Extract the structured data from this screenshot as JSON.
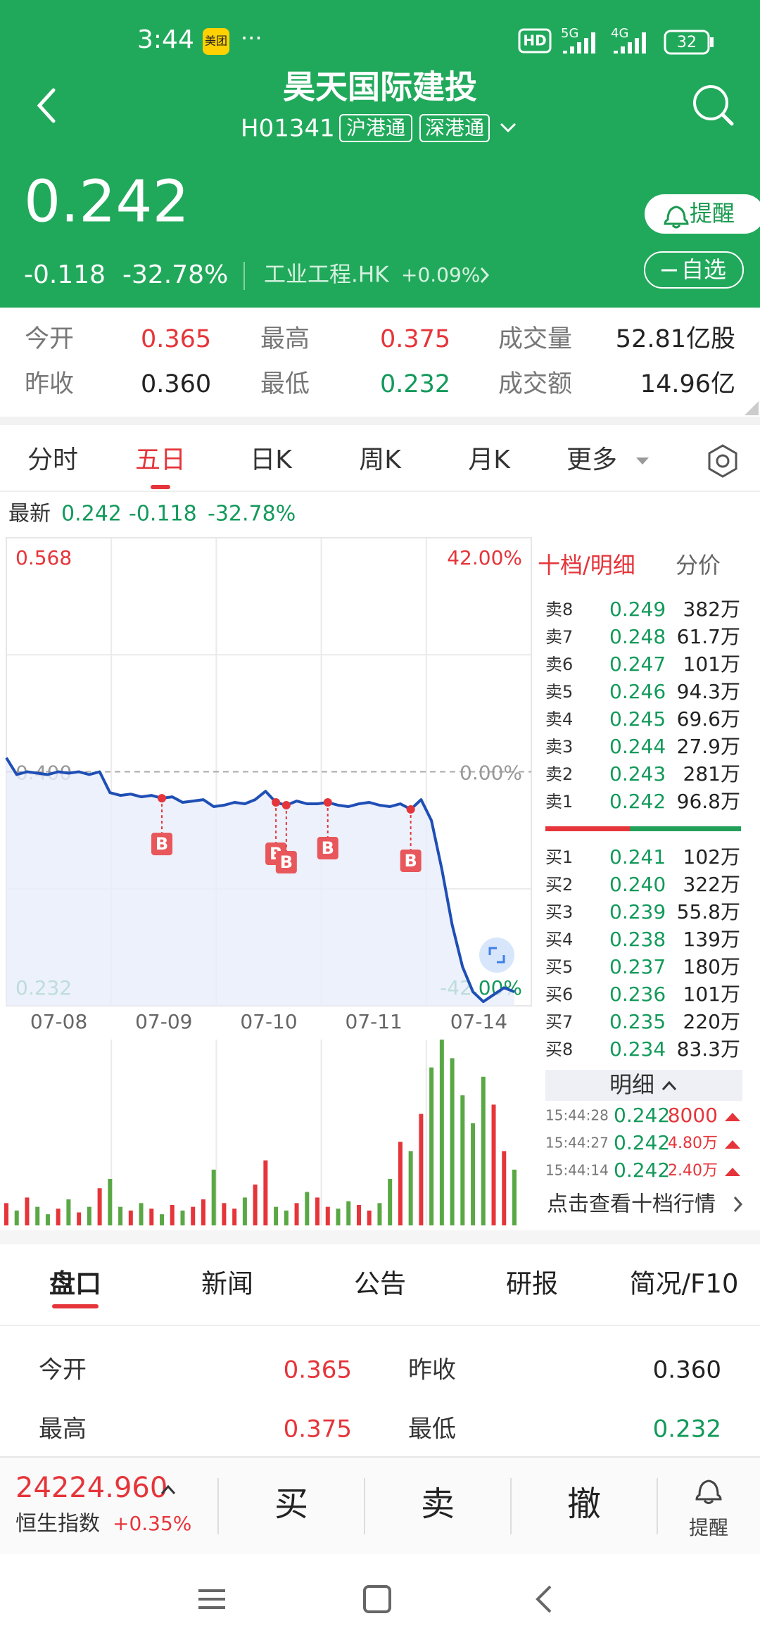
{
  "status": {
    "time": "3:44",
    "app_badge": "美团",
    "more": "···",
    "hd": "HD",
    "net1": "5G",
    "net2": "4G",
    "battery": "32"
  },
  "header": {
    "title": "昊天国际建投",
    "code": "H01341",
    "tags": [
      "沪港通",
      "深港通"
    ],
    "price": "0.242",
    "change": "-0.118",
    "change_pct": "-32.78%",
    "sector": "工业工程.HK",
    "sector_change": "+0.09%",
    "alert_button": "提醒",
    "watch_button": "自选"
  },
  "stats": [
    {
      "label": "今开",
      "value": "0.365",
      "tone": "up"
    },
    {
      "label": "最高",
      "value": "0.375",
      "tone": "up"
    },
    {
      "label": "成交量",
      "value": "52.81亿股",
      "tone": "flat"
    },
    {
      "label": "昨收",
      "value": "0.360",
      "tone": "flat"
    },
    {
      "label": "最低",
      "value": "0.232",
      "tone": "down"
    },
    {
      "label": "成交额",
      "value": "14.96亿",
      "tone": "flat"
    }
  ],
  "tabs": {
    "items": [
      "分时",
      "五日",
      "日K",
      "周K",
      "月K",
      "更多"
    ],
    "active": 1
  },
  "latest": {
    "label": "最新",
    "price": "0.242",
    "change": "-0.118",
    "pct": "-32.78%"
  },
  "price_chart": {
    "type": "line",
    "color": "#1f4fb5",
    "categories": [
      "07-08",
      "07-09",
      "07-10",
      "07-11",
      "07-14"
    ],
    "values": [
      0.41,
      0.398,
      0.4,
      0.399,
      0.398,
      0.4,
      0.399,
      0.4,
      0.398,
      0.4,
      0.385,
      0.383,
      0.384,
      0.382,
      0.383,
      0.381,
      0.382,
      0.378,
      0.379,
      0.38,
      0.375,
      0.376,
      0.378,
      0.377,
      0.38,
      0.386,
      0.378,
      0.376,
      0.379,
      0.377,
      0.377,
      0.378,
      0.376,
      0.375,
      0.377,
      0.378,
      0.376,
      0.375,
      0.377,
      0.373,
      0.38,
      0.365,
      0.33,
      0.29,
      0.26,
      0.242,
      0.235,
      0.24,
      0.245,
      0.242
    ],
    "ylim": [
      0.232,
      0.568
    ],
    "yticks": [
      {
        "value": 0.568,
        "label": "0.568"
      },
      {
        "value": 0.4,
        "label": "0.400"
      },
      {
        "value": 0.232,
        "label": "0.232"
      }
    ],
    "pct_ticks": [
      "42.00%",
      "0.00%",
      "-42.00%"
    ],
    "trade_markers": [
      {
        "label": "B",
        "point": 15
      },
      {
        "label": "B",
        "point": 26
      },
      {
        "label": "B",
        "point": 27
      },
      {
        "label": "B",
        "point": 31
      },
      {
        "label": "B",
        "point": 39
      }
    ]
  },
  "volume_chart": {
    "type": "bar",
    "values": [
      12,
      8,
      15,
      10,
      6,
      9,
      14,
      7,
      10,
      20,
      25,
      10,
      8,
      12,
      9,
      6,
      11,
      8,
      10,
      14,
      30,
      12,
      9,
      15,
      22,
      35,
      10,
      8,
      12,
      18,
      15,
      10,
      9,
      13,
      11,
      8,
      12,
      25,
      45,
      40,
      60,
      85,
      100,
      90,
      70,
      55,
      80,
      65,
      40,
      30
    ],
    "ylim": [
      0,
      100
    ],
    "up_color": "#e5353a",
    "down_color": "#5aa845"
  },
  "order_book": {
    "title": "十档/明细",
    "alt_tab": "分价",
    "sell": [
      [
        "卖8",
        "0.249",
        "382万"
      ],
      [
        "卖7",
        "0.248",
        "61.7万"
      ],
      [
        "卖6",
        "0.247",
        "101万"
      ],
      [
        "卖5",
        "0.246",
        "94.3万"
      ],
      [
        "卖4",
        "0.245",
        "69.6万"
      ],
      [
        "卖3",
        "0.244",
        "27.9万"
      ],
      [
        "卖2",
        "0.243",
        "281万"
      ],
      [
        "卖1",
        "0.242",
        "96.8万"
      ]
    ],
    "buy": [
      [
        "买1",
        "0.241",
        "102万"
      ],
      [
        "买2",
        "0.240",
        "322万"
      ],
      [
        "买3",
        "0.239",
        "55.8万"
      ],
      [
        "买4",
        "0.238",
        "139万"
      ],
      [
        "买5",
        "0.237",
        "180万"
      ],
      [
        "买6",
        "0.236",
        "101万"
      ],
      [
        "买7",
        "0.235",
        "220万"
      ],
      [
        "买8",
        "0.234",
        "83.3万"
      ]
    ],
    "detail_label": "明细",
    "trades": [
      [
        "15:44:28",
        "0.242",
        "8000"
      ],
      [
        "15:44:27",
        "0.242",
        "4.80万"
      ],
      [
        "15:44:14",
        "0.242",
        "2.40万"
      ]
    ],
    "more_link": "点击查看十档行情"
  },
  "section_tabs": {
    "items": [
      "盘口",
      "新闻",
      "公告",
      "研报",
      "简况/F10"
    ],
    "active": 0
  },
  "panel": [
    {
      "label": "今开",
      "value": "0.365",
      "tone": "up"
    },
    {
      "label": "昨收",
      "value": "0.360",
      "tone": "flat"
    },
    {
      "label": "最高",
      "value": "0.375",
      "tone": "up"
    },
    {
      "label": "最低",
      "value": "0.232",
      "tone": "down"
    }
  ],
  "bottom_bar": {
    "index_value": "24224.960",
    "index_name": "恒生指数",
    "index_change": "+0.35%",
    "actions": [
      "买",
      "卖",
      "撤"
    ],
    "alert": "提醒"
  }
}
